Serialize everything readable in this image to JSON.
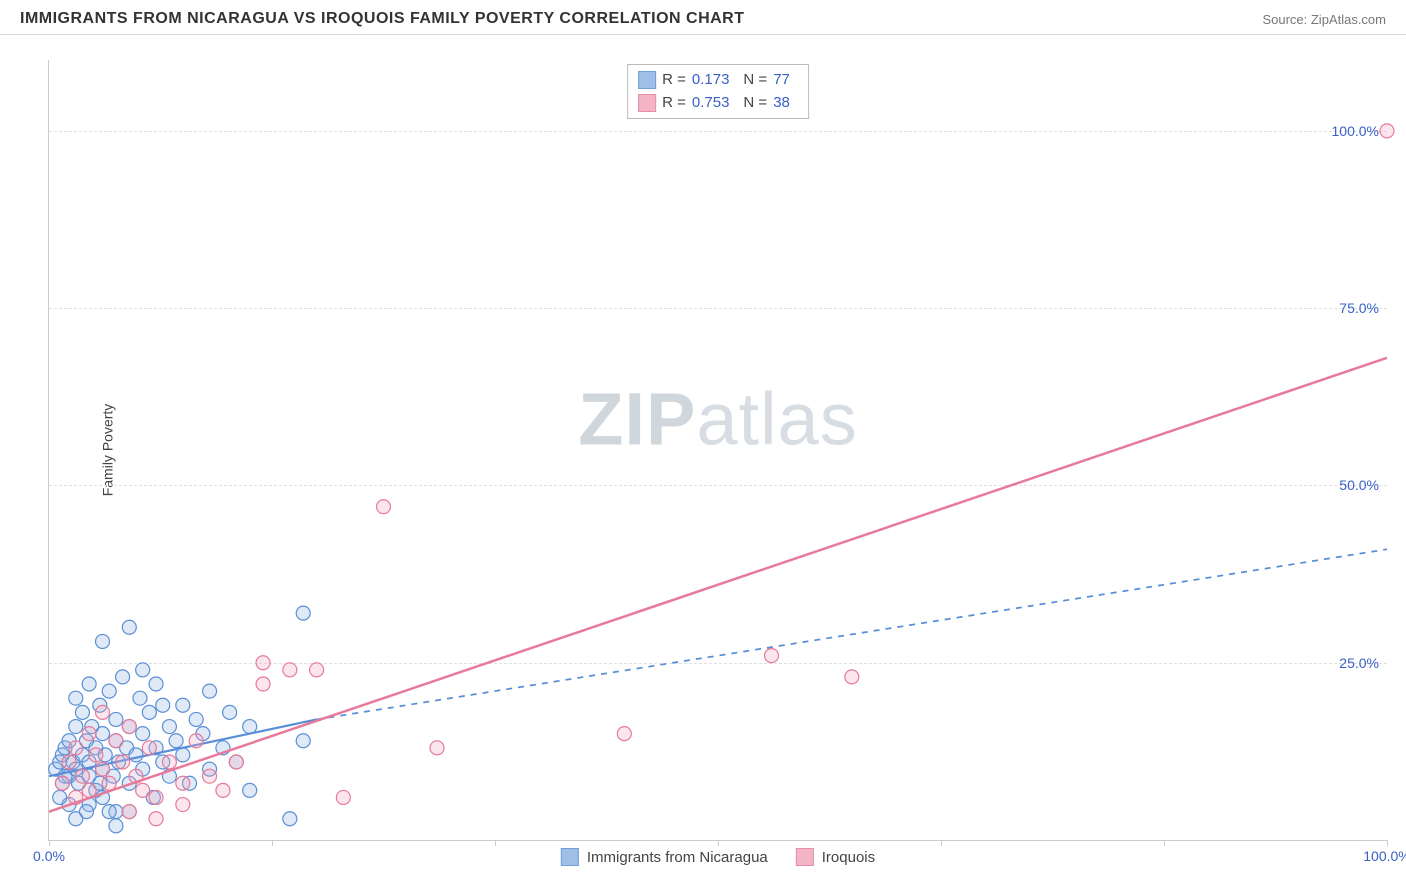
{
  "header": {
    "title": "IMMIGRANTS FROM NICARAGUA VS IROQUOIS FAMILY POVERTY CORRELATION CHART",
    "source_prefix": "Source: ",
    "source_name": "ZipAtlas.com"
  },
  "watermark": {
    "part1": "ZIP",
    "part2": "atlas"
  },
  "chart": {
    "type": "scatter",
    "ylabel": "Family Poverty",
    "xlim": [
      0,
      100
    ],
    "ylim": [
      0,
      110
    ],
    "ytick_values": [
      25,
      50,
      75,
      100
    ],
    "ytick_labels": [
      "25.0%",
      "50.0%",
      "75.0%",
      "100.0%"
    ],
    "xtick_values": [
      0,
      16.67,
      33.33,
      50,
      66.67,
      83.33,
      100
    ],
    "xtick_labels_shown": {
      "0": "0.0%",
      "100": "100.0%"
    },
    "background_color": "#ffffff",
    "grid_color": "#e0e0e0",
    "axis_color": "#cccccc",
    "marker_radius": 7,
    "marker_stroke_width": 1.2,
    "marker_fill_opacity": 0.28
  },
  "series": [
    {
      "id": "nicaragua",
      "label": "Immigrants from Nicaragua",
      "color_stroke": "#5a8fd6",
      "color_fill": "#8fb4e3",
      "R": "0.173",
      "N": "77",
      "trend": {
        "x1": 0,
        "y1": 9,
        "x2": 20,
        "y2": 17,
        "dashed_x2": 100,
        "dashed_y2": 41,
        "stroke_width": 2.2
      },
      "points": [
        [
          0.5,
          10
        ],
        [
          0.8,
          11
        ],
        [
          1,
          8
        ],
        [
          1,
          12
        ],
        [
          1.2,
          13
        ],
        [
          1.5,
          9
        ],
        [
          1.5,
          14
        ],
        [
          1.8,
          11
        ],
        [
          2,
          10
        ],
        [
          2,
          16
        ],
        [
          2,
          20
        ],
        [
          2.2,
          8
        ],
        [
          2.5,
          12
        ],
        [
          2.5,
          18
        ],
        [
          2.8,
          14
        ],
        [
          3,
          9
        ],
        [
          3,
          11
        ],
        [
          3,
          22
        ],
        [
          3.2,
          16
        ],
        [
          3.5,
          13
        ],
        [
          3.5,
          7
        ],
        [
          3.8,
          19
        ],
        [
          4,
          10
        ],
        [
          4,
          15
        ],
        [
          4,
          28
        ],
        [
          4.2,
          12
        ],
        [
          4.5,
          21
        ],
        [
          4.8,
          9
        ],
        [
          5,
          14
        ],
        [
          5,
          17
        ],
        [
          5,
          4
        ],
        [
          5.2,
          11
        ],
        [
          5.5,
          23
        ],
        [
          5.8,
          13
        ],
        [
          6,
          8
        ],
        [
          6,
          16
        ],
        [
          6,
          30
        ],
        [
          6.5,
          12
        ],
        [
          6.8,
          20
        ],
        [
          7,
          10
        ],
        [
          7,
          15
        ],
        [
          7.5,
          18
        ],
        [
          7.8,
          6
        ],
        [
          8,
          13
        ],
        [
          8,
          22
        ],
        [
          8.5,
          11
        ],
        [
          9,
          16
        ],
        [
          9,
          9
        ],
        [
          9.5,
          14
        ],
        [
          10,
          19
        ],
        [
          10,
          12
        ],
        [
          10.5,
          8
        ],
        [
          11,
          17
        ],
        [
          11.5,
          15
        ],
        [
          12,
          21
        ],
        [
          12,
          10
        ],
        [
          13,
          13
        ],
        [
          13.5,
          18
        ],
        [
          14,
          11
        ],
        [
          15,
          16
        ],
        [
          15,
          7
        ],
        [
          2,
          3
        ],
        [
          3,
          5
        ],
        [
          4,
          6
        ],
        [
          5,
          2
        ],
        [
          6,
          4
        ],
        [
          1.5,
          5
        ],
        [
          2.8,
          4
        ],
        [
          0.8,
          6
        ],
        [
          1.2,
          9
        ],
        [
          7,
          24
        ],
        [
          8.5,
          19
        ],
        [
          3.8,
          8
        ],
        [
          4.5,
          4
        ],
        [
          18,
          3
        ],
        [
          19,
          32
        ],
        [
          19,
          14
        ]
      ]
    },
    {
      "id": "iroquois",
      "label": "Iroquois",
      "color_stroke": "#e77a9a",
      "color_fill": "#f2a7bd",
      "R": "0.753",
      "N": "38",
      "trend": {
        "x1": 0,
        "y1": 4,
        "x2": 100,
        "y2": 68,
        "stroke_width": 2.5
      },
      "points": [
        [
          1,
          8
        ],
        [
          1.5,
          11
        ],
        [
          2,
          6
        ],
        [
          2,
          13
        ],
        [
          2.5,
          9
        ],
        [
          3,
          15
        ],
        [
          3,
          7
        ],
        [
          3.5,
          12
        ],
        [
          4,
          10
        ],
        [
          4,
          18
        ],
        [
          4.5,
          8
        ],
        [
          5,
          14
        ],
        [
          5.5,
          11
        ],
        [
          6,
          4
        ],
        [
          6,
          16
        ],
        [
          6.5,
          9
        ],
        [
          7,
          7
        ],
        [
          7.5,
          13
        ],
        [
          8,
          3
        ],
        [
          8,
          6
        ],
        [
          9,
          11
        ],
        [
          10,
          8
        ],
        [
          10,
          5
        ],
        [
          11,
          14
        ],
        [
          12,
          9
        ],
        [
          13,
          7
        ],
        [
          14,
          11
        ],
        [
          16,
          22
        ],
        [
          16,
          25
        ],
        [
          18,
          24
        ],
        [
          20,
          24
        ],
        [
          22,
          6
        ],
        [
          25,
          47
        ],
        [
          29,
          13
        ],
        [
          43,
          15
        ],
        [
          54,
          26
        ],
        [
          60,
          23
        ],
        [
          100,
          100
        ]
      ]
    }
  ],
  "stats_box": {
    "R_label": "R =",
    "N_label": "N ="
  },
  "bottom_legend": {
    "items": [
      "nicaragua",
      "iroquois"
    ]
  }
}
